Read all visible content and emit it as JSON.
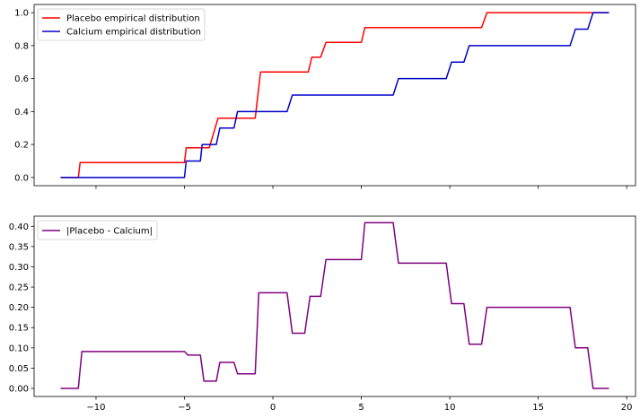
{
  "chart_data": [
    {
      "type": "line",
      "title": "",
      "xlabel": "",
      "ylabel": "",
      "xlim": [
        -13.5,
        20.5
      ],
      "ylim": [
        -0.05,
        1.05
      ],
      "grid": false,
      "legend_position": "top-left",
      "x_ticks": [
        -10,
        -5,
        0,
        5,
        10,
        15,
        20
      ],
      "x_ticklabels_visible": false,
      "y_ticks": [
        0.0,
        0.2,
        0.4,
        0.6,
        0.8,
        1.0
      ],
      "y_ticklabels": [
        "0.0",
        "0.2",
        "0.4",
        "0.6",
        "0.8",
        "1.0"
      ],
      "series": [
        {
          "name": "Placebo empirical distribution",
          "color": "#ff0000",
          "x": [
            -12,
            -11,
            -10.9,
            -5,
            -4.9,
            -3.6,
            -3.1,
            -2,
            -1,
            -0.7,
            1,
            1.8,
            2,
            2.2,
            2.7,
            3,
            5,
            5.2,
            11.8,
            12.1,
            19
          ],
          "y": [
            0,
            0,
            0.09,
            0.09,
            0.18,
            0.18,
            0.36,
            0.36,
            0.36,
            0.64,
            0.64,
            0.64,
            0.64,
            0.73,
            0.73,
            0.82,
            0.82,
            0.91,
            0.91,
            1.0,
            1.0
          ]
        },
        {
          "name": "Calcium empirical distribution",
          "color": "#0000cc",
          "x": [
            -12,
            -5,
            -4.9,
            -4.1,
            -4,
            -3.2,
            -3,
            -2.2,
            -2,
            0.8,
            1.1,
            6.8,
            7.1,
            9.8,
            10.1,
            10.8,
            11.1,
            16.8,
            17.1,
            17.8,
            18.1,
            19
          ],
          "y": [
            0,
            0,
            0.1,
            0.1,
            0.2,
            0.2,
            0.3,
            0.3,
            0.4,
            0.4,
            0.5,
            0.5,
            0.6,
            0.6,
            0.7,
            0.7,
            0.8,
            0.8,
            0.9,
            0.9,
            1.0,
            1.0
          ]
        }
      ]
    },
    {
      "type": "line",
      "title": "",
      "xlabel": "",
      "ylabel": "",
      "xlim": [
        -13.5,
        20.5
      ],
      "ylim": [
        -0.02,
        0.425
      ],
      "grid": false,
      "legend_position": "top-left",
      "x_ticks": [
        -10,
        -5,
        0,
        5,
        10,
        15,
        20
      ],
      "x_ticklabels": [
        "−10",
        "−5",
        "0",
        "5",
        "10",
        "15",
        "20"
      ],
      "y_ticks": [
        0.0,
        0.05,
        0.1,
        0.15,
        0.2,
        0.25,
        0.3,
        0.35,
        0.4
      ],
      "y_ticklabels": [
        "0.00",
        "0.05",
        "0.10",
        "0.15",
        "0.20",
        "0.25",
        "0.30",
        "0.35",
        "0.40"
      ],
      "series": [
        {
          "name": "|Placebo - Calcium|",
          "color": "#800080",
          "x": [
            -12,
            -11,
            -10.8,
            -5,
            -4.8,
            -4.1,
            -3.9,
            -3.2,
            -3,
            -2.2,
            -2,
            -1,
            -0.8,
            0.8,
            1.1,
            1.8,
            2.1,
            2.7,
            3,
            5,
            5.2,
            6.8,
            7.1,
            9.8,
            10.1,
            10.8,
            11.1,
            11.8,
            12.1,
            16.8,
            17.1,
            17.8,
            18.1,
            19
          ],
          "y": [
            0,
            0,
            0.091,
            0.091,
            0.082,
            0.082,
            0.018,
            0.018,
            0.064,
            0.064,
            0.036,
            0.036,
            0.236,
            0.236,
            0.136,
            0.136,
            0.227,
            0.227,
            0.318,
            0.318,
            0.409,
            0.409,
            0.309,
            0.309,
            0.209,
            0.209,
            0.109,
            0.109,
            0.2,
            0.2,
            0.1,
            0.1,
            0,
            0
          ]
        }
      ]
    }
  ]
}
